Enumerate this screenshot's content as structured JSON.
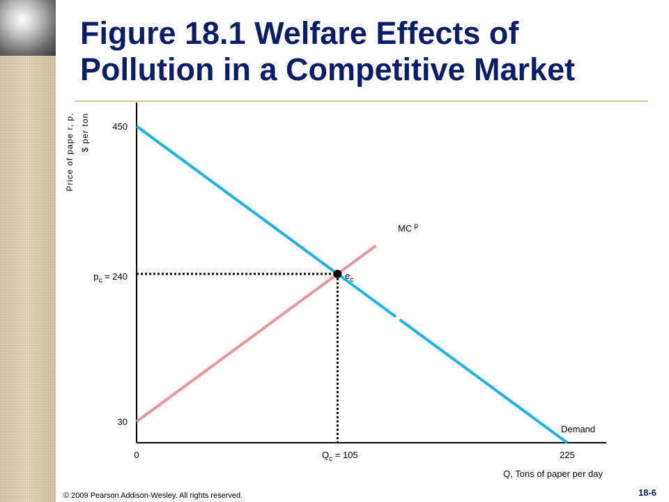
{
  "slide": {
    "title_bold": "Figure 18.1",
    "title_rest": "  Welfare Effects of Pollution in a Competitive Market",
    "footer": "© 2009 Pearson Addison-Wesley. All rights reserved.",
    "slide_number": "18-6"
  },
  "colors": {
    "title": "#0a1d6a",
    "demand": "#1ab2e8",
    "mcp": "#e8969e",
    "rule": "#d7c28b"
  },
  "chart_data": {
    "type": "line",
    "ylabel_line1": "Price of pape r, p,",
    "ylabel_line2": "$ per ton",
    "xlabel": "Q, Tons of paper per day",
    "xlim": [
      0,
      230
    ],
    "ylim": [
      0,
      480
    ],
    "x_ticks": [
      {
        "value": 0,
        "label": "0"
      },
      {
        "value": 225,
        "label": "225"
      }
    ],
    "y_ticks": [
      {
        "value": 450,
        "label": "450"
      },
      {
        "value": 30,
        "label": "30"
      }
    ],
    "series": [
      {
        "name": "Demand",
        "color": "#1ab2e8",
        "points": [
          [
            0,
            450
          ],
          [
            105,
            240
          ],
          [
            225,
            0
          ]
        ]
      },
      {
        "name": "MC",
        "superscript": "p",
        "color": "#e8969e",
        "points": [
          [
            0,
            30
          ],
          [
            105,
            240
          ],
          [
            125,
            280
          ]
        ]
      }
    ],
    "equilibrium": {
      "x": 105,
      "y": 240,
      "label": "e",
      "subscript": "c"
    },
    "price_label": {
      "base": "p",
      "sub": "c",
      "rest": " = 240"
    },
    "quantity_label": {
      "base": "Q",
      "sub": "c",
      "rest": " = 105"
    }
  }
}
